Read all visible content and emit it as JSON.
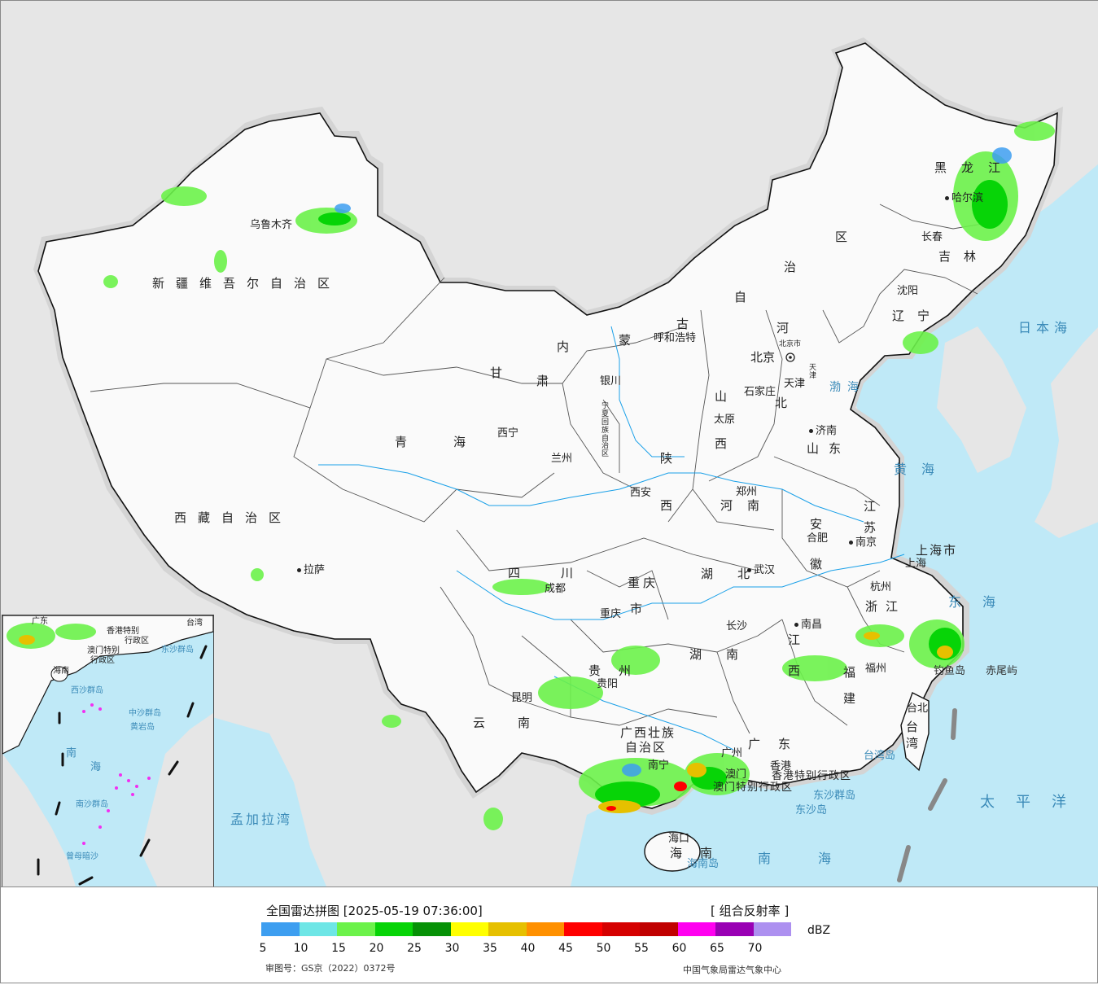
{
  "map": {
    "provinces": [
      {
        "id": "xinjiang",
        "text": "新疆维吾尔自治区"
      },
      {
        "id": "xizang",
        "text": "西藏自治区"
      },
      {
        "id": "qinghai-a",
        "text": "青"
      },
      {
        "id": "qinghai-b",
        "text": "海"
      },
      {
        "id": "gansu-a",
        "text": "甘"
      },
      {
        "id": "gansu-b",
        "text": "肃"
      },
      {
        "id": "nmg-a",
        "text": "内"
      },
      {
        "id": "nmg-b",
        "text": "蒙"
      },
      {
        "id": "nmg-c",
        "text": "古"
      },
      {
        "id": "nmg-d",
        "text": "自"
      },
      {
        "id": "nmg-e",
        "text": "治"
      },
      {
        "id": "nmg-f",
        "text": "区"
      },
      {
        "id": "heilongjiang",
        "text": "黑龙江"
      },
      {
        "id": "jilin",
        "text": "吉林"
      },
      {
        "id": "liaoning",
        "text": "辽宁"
      },
      {
        "id": "hebei-a",
        "text": "河"
      },
      {
        "id": "hebei-b",
        "text": "北"
      },
      {
        "id": "shanxi-a",
        "text": "山"
      },
      {
        "id": "shanxi-b",
        "text": "西"
      },
      {
        "id": "shandong",
        "text": "山东"
      },
      {
        "id": "shaanxi-a",
        "text": "陕"
      },
      {
        "id": "shaanxi-b",
        "text": "西"
      },
      {
        "id": "ningxia",
        "text": "宁夏回族自治区"
      },
      {
        "id": "henan",
        "text": "河南"
      },
      {
        "id": "jiangsu-a",
        "text": "江"
      },
      {
        "id": "jiangsu-b",
        "text": "苏"
      },
      {
        "id": "anhui-a",
        "text": "安"
      },
      {
        "id": "anhui-b",
        "text": "徽"
      },
      {
        "id": "shanghai",
        "text": "上海市"
      },
      {
        "id": "zhejiang",
        "text": "浙江"
      },
      {
        "id": "sichuan",
        "text": "四川"
      },
      {
        "id": "chongqing-a",
        "text": "重庆"
      },
      {
        "id": "chongqing-b",
        "text": "市"
      },
      {
        "id": "hubei",
        "text": "湖北"
      },
      {
        "id": "hunan",
        "text": "湖南"
      },
      {
        "id": "jiangxi-a",
        "text": "江"
      },
      {
        "id": "jiangxi-b",
        "text": "西"
      },
      {
        "id": "fujian-a",
        "text": "福"
      },
      {
        "id": "fujian-b",
        "text": "建"
      },
      {
        "id": "guizhou",
        "text": "贵州"
      },
      {
        "id": "yunnan",
        "text": "云南"
      },
      {
        "id": "guangxi-a",
        "text": "广西壮族"
      },
      {
        "id": "guangxi-b",
        "text": "自治区"
      },
      {
        "id": "guangdong",
        "text": "广东"
      },
      {
        "id": "hainan",
        "text": "海南"
      },
      {
        "id": "taiwan",
        "text": "台湾"
      },
      {
        "id": "hk-sar",
        "text": "香港特别行政区"
      },
      {
        "id": "macao-sar",
        "text": "澳门特别行政区"
      }
    ],
    "cities": [
      {
        "id": "urumqi",
        "text": "乌鲁木齐"
      },
      {
        "id": "lhasa",
        "text": "拉萨"
      },
      {
        "id": "xining",
        "text": "西宁"
      },
      {
        "id": "lanzhou",
        "text": "兰州"
      },
      {
        "id": "yinchuan",
        "text": "银川"
      },
      {
        "id": "hohhot",
        "text": "呼和浩特"
      },
      {
        "id": "beijing",
        "text": "北京"
      },
      {
        "id": "beijing-city",
        "text": "北京市"
      },
      {
        "id": "tianjin",
        "text": "天津"
      },
      {
        "id": "tianjin-city",
        "text": "天津"
      },
      {
        "id": "shijiazhuang",
        "text": "石家庄"
      },
      {
        "id": "taiyuan",
        "text": "太原"
      },
      {
        "id": "jinan",
        "text": "济南"
      },
      {
        "id": "xian",
        "text": "西安"
      },
      {
        "id": "zhengzhou",
        "text": "郑州"
      },
      {
        "id": "hefei",
        "text": "合肥"
      },
      {
        "id": "nanjing",
        "text": "南京"
      },
      {
        "id": "shanghai-city",
        "text": "上海"
      },
      {
        "id": "hangzhou",
        "text": "杭州"
      },
      {
        "id": "wuhan",
        "text": "武汉"
      },
      {
        "id": "chengdu",
        "text": "成都"
      },
      {
        "id": "chongqing",
        "text": "重庆"
      },
      {
        "id": "changsha",
        "text": "长沙"
      },
      {
        "id": "nanchang",
        "text": "南昌"
      },
      {
        "id": "fuzhou",
        "text": "福州"
      },
      {
        "id": "guiyang",
        "text": "贵阳"
      },
      {
        "id": "kunming",
        "text": "昆明"
      },
      {
        "id": "nanning",
        "text": "南宁"
      },
      {
        "id": "guangzhou",
        "text": "广州"
      },
      {
        "id": "hongkong",
        "text": "香港"
      },
      {
        "id": "macao",
        "text": "澳门"
      },
      {
        "id": "haikou",
        "text": "海口"
      },
      {
        "id": "taipei",
        "text": "台北"
      },
      {
        "id": "harbin",
        "text": "哈尔滨"
      },
      {
        "id": "changchun",
        "text": "长春"
      },
      {
        "id": "shenyang",
        "text": "沈阳"
      }
    ],
    "seas": [
      {
        "id": "bohai",
        "text": "渤海"
      },
      {
        "id": "huanghai",
        "text": "黄海"
      },
      {
        "id": "donghai",
        "text": "东海"
      },
      {
        "id": "nanhai",
        "text": "南海"
      },
      {
        "id": "riben",
        "text": "日本海"
      },
      {
        "id": "taipingyang",
        "text": "太平洋"
      },
      {
        "id": "mengjiala",
        "text": "孟加拉湾"
      }
    ],
    "islands": [
      {
        "id": "diaoyu",
        "text": "钓鱼岛"
      },
      {
        "id": "chiwei",
        "text": "赤尾屿"
      },
      {
        "id": "taiwan-dao",
        "text": "台湾岛"
      },
      {
        "id": "dongsha-qd",
        "text": "东沙群岛"
      },
      {
        "id": "dongsha-d",
        "text": "东沙岛"
      },
      {
        "id": "hainan-dao",
        "text": "海南岛"
      }
    ],
    "inset": {
      "labels": [
        {
          "id": "i-guangdong",
          "text": "广东"
        },
        {
          "id": "i-hk",
          "text": "香港特别"
        },
        {
          "id": "i-hk2",
          "text": "行政区"
        },
        {
          "id": "i-macao",
          "text": "澳门特别"
        },
        {
          "id": "i-macao2",
          "text": "行政区"
        },
        {
          "id": "i-taiwan",
          "text": "台湾"
        },
        {
          "id": "i-dongsha",
          "text": "东沙群岛"
        },
        {
          "id": "i-hainan",
          "text": "海南"
        },
        {
          "id": "i-xisha",
          "text": "西沙群岛"
        },
        {
          "id": "i-zhongsha",
          "text": "中沙群岛"
        },
        {
          "id": "i-huangyan",
          "text": "黄岩岛"
        },
        {
          "id": "i-nanhai-a",
          "text": "南"
        },
        {
          "id": "i-nanhai-b",
          "text": "海"
        },
        {
          "id": "i-nansha",
          "text": "南沙群岛"
        },
        {
          "id": "i-zengmu",
          "text": "曾母暗沙"
        }
      ]
    }
  },
  "legend": {
    "title": "全国雷达拼图 [2025-05-19 07:36:00]",
    "product": "[ 组合反射率 ]",
    "unit": "dBZ",
    "colors": [
      "#3d9ef0",
      "#6ee6e6",
      "#6cf24a",
      "#07d407",
      "#069106",
      "#ffff00",
      "#e6c000",
      "#ff9000",
      "#ff0000",
      "#d50000",
      "#c00000",
      "#ff00f0",
      "#9900b4",
      "#ad90f0"
    ],
    "ticks": [
      "5",
      "10",
      "15",
      "20",
      "25",
      "30",
      "35",
      "40",
      "45",
      "50",
      "55",
      "60",
      "65",
      "70"
    ],
    "approval": "审图号：GS京（2022）0372号",
    "source": "中国气象局雷达气象中心"
  }
}
